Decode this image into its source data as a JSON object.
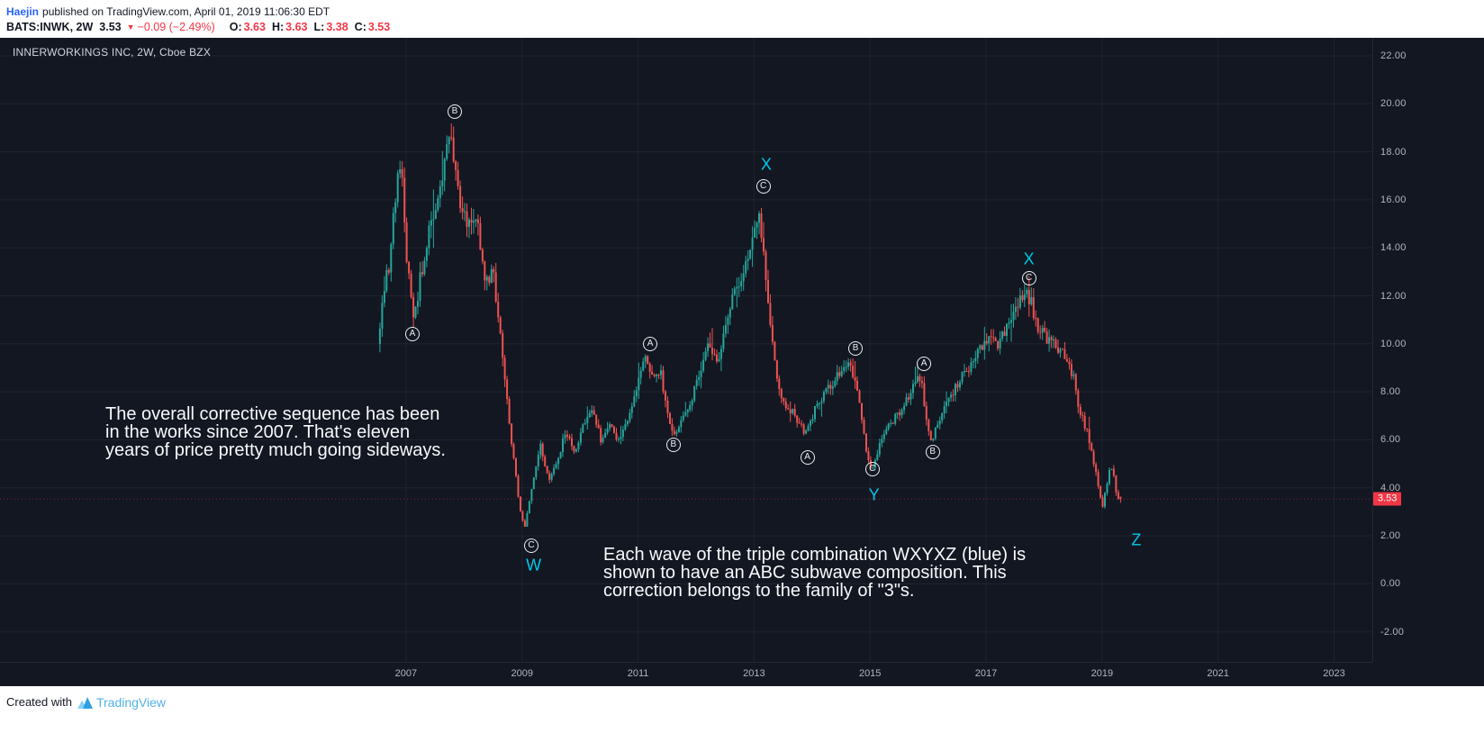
{
  "header": {
    "author": "Haejin",
    "published_text": "published on TradingView.com, April 01, 2019 11:06:30 EDT",
    "symbol": "BATS:INWK, 2W",
    "last_price": "3.53",
    "direction_icon": "▼",
    "change_text": "−0.09 (−2.49%)",
    "ohlc": [
      {
        "label": "O:",
        "value": "3.63"
      },
      {
        "label": "H:",
        "value": "3.63"
      },
      {
        "label": "L:",
        "value": "3.38"
      },
      {
        "label": "C:",
        "value": "3.53"
      }
    ]
  },
  "chart": {
    "title": "INNERWORKINGS INC, 2W, Cboe BZX",
    "price_axis_labels": [
      "22.00",
      "20.00",
      "18.00",
      "16.00",
      "14.00",
      "12.00",
      "10.00",
      "8.00",
      "6.00",
      "4.00",
      "2.00",
      "0.00",
      "-2.00"
    ],
    "time_axis_labels": [
      "2007",
      "2009",
      "2011",
      "2013",
      "2015",
      "2017",
      "2019",
      "2021",
      "2023"
    ],
    "last_price_tag": "3.53"
  },
  "annotations": {
    "note1": "The overall corrective sequence has been\nin the works since 2007. That's eleven\nyears of price pretty much going sideways.",
    "note2": "Each wave of the triple combination WXYXZ (blue) is\nshown to have an ABC subwave composition. This\ncorrection belongs to the family of \"3\"s.",
    "wave_points": [
      {
        "letter": "A",
        "year": 2007.11,
        "price": 10.4
      },
      {
        "letter": "B",
        "year": 2007.84,
        "price": 19.67
      },
      {
        "letter": "C",
        "year": 2009.16,
        "price": 1.58
      },
      {
        "letter": "A",
        "year": 2011.21,
        "price": 9.99
      },
      {
        "letter": "B",
        "year": 2011.61,
        "price": 5.79
      },
      {
        "letter": "C",
        "year": 2013.16,
        "price": 16.56
      },
      {
        "letter": "A",
        "year": 2013.92,
        "price": 5.26
      },
      {
        "letter": "B",
        "year": 2014.75,
        "price": 9.8
      },
      {
        "letter": "C",
        "year": 2015.04,
        "price": 4.78
      },
      {
        "letter": "A",
        "year": 2015.93,
        "price": 9.17
      },
      {
        "letter": "B",
        "year": 2016.08,
        "price": 5.49
      },
      {
        "letter": "C",
        "year": 2017.74,
        "price": 12.73
      }
    ],
    "wxyz_points": [
      {
        "letter": "W",
        "year": 2009.2,
        "price": 0.76
      },
      {
        "letter": "X",
        "year": 2013.21,
        "price": 17.46
      },
      {
        "letter": "Y",
        "year": 2015.07,
        "price": 3.69
      },
      {
        "letter": "X",
        "year": 2017.74,
        "price": 13.52
      },
      {
        "letter": "Z",
        "year": 2019.59,
        "price": 1.81
      }
    ]
  },
  "footer": {
    "created_with": "Created with",
    "brand": "TradingView"
  },
  "colors": {
    "chart_background": "#131722",
    "candle_up": "#26a69a",
    "candle_down": "#ef5350",
    "negative_red": "#f23645",
    "wave_letters": "#eceef1",
    "wxyz_cyan": "#00c9ea",
    "author_link_blue": "#2962ff",
    "brand_blue": "#51b2e9",
    "axis_text": "#b2b5be"
  },
  "chart_data": {
    "type": "candlestick",
    "symbol": "BATS:INWK",
    "interval": "2W",
    "xlim_years": [
      2000.0,
      2023.66
    ],
    "ylim_price": [
      -3.25,
      22.75
    ],
    "start_year": 2006.55,
    "end_year": 2019.3,
    "candle_interval_years": 0.03846,
    "last_candle": {
      "o": 3.63,
      "h": 3.63,
      "l": 3.38,
      "c": 3.53
    },
    "price_path": [
      [
        2006.55,
        10.0
      ],
      [
        2006.65,
        12.3
      ],
      [
        2006.75,
        13.2
      ],
      [
        2006.88,
        16.8
      ],
      [
        2006.96,
        17.6
      ],
      [
        2007.05,
        13.5
      ],
      [
        2007.18,
        11.0
      ],
      [
        2007.3,
        13.0
      ],
      [
        2007.45,
        14.8
      ],
      [
        2007.6,
        16.2
      ],
      [
        2007.75,
        18.0
      ],
      [
        2007.82,
        18.6
      ],
      [
        2007.95,
        16.2
      ],
      [
        2008.1,
        14.8
      ],
      [
        2008.25,
        15.3
      ],
      [
        2008.4,
        12.5
      ],
      [
        2008.55,
        12.9
      ],
      [
        2008.7,
        9.5
      ],
      [
        2008.85,
        6.0
      ],
      [
        2009.0,
        3.2
      ],
      [
        2009.08,
        2.2
      ],
      [
        2009.2,
        4.0
      ],
      [
        2009.35,
        5.8
      ],
      [
        2009.5,
        4.3
      ],
      [
        2009.65,
        5.2
      ],
      [
        2009.8,
        6.4
      ],
      [
        2009.95,
        5.3
      ],
      [
        2010.1,
        6.6
      ],
      [
        2010.25,
        7.3
      ],
      [
        2010.4,
        6.0
      ],
      [
        2010.55,
        6.6
      ],
      [
        2010.7,
        5.9
      ],
      [
        2010.85,
        6.8
      ],
      [
        2011.0,
        8.0
      ],
      [
        2011.15,
        9.6
      ],
      [
        2011.3,
        8.7
      ],
      [
        2011.42,
        8.9
      ],
      [
        2011.55,
        7.0
      ],
      [
        2011.68,
        6.1
      ],
      [
        2011.8,
        6.9
      ],
      [
        2011.95,
        7.6
      ],
      [
        2012.1,
        8.9
      ],
      [
        2012.25,
        9.9
      ],
      [
        2012.4,
        9.2
      ],
      [
        2012.55,
        10.8
      ],
      [
        2012.7,
        12.2
      ],
      [
        2012.85,
        13.0
      ],
      [
        2013.0,
        14.2
      ],
      [
        2013.12,
        15.2
      ],
      [
        2013.2,
        14.3
      ],
      [
        2013.3,
        11.0
      ],
      [
        2013.45,
        8.3
      ],
      [
        2013.6,
        7.4
      ],
      [
        2013.75,
        7.0
      ],
      [
        2013.92,
        6.3
      ],
      [
        2014.1,
        7.3
      ],
      [
        2014.3,
        8.2
      ],
      [
        2014.55,
        8.8
      ],
      [
        2014.7,
        9.3
      ],
      [
        2014.85,
        7.5
      ],
      [
        2015.0,
        5.2
      ],
      [
        2015.07,
        4.7
      ],
      [
        2015.2,
        5.8
      ],
      [
        2015.35,
        6.6
      ],
      [
        2015.5,
        7.0
      ],
      [
        2015.65,
        7.6
      ],
      [
        2015.8,
        8.3
      ],
      [
        2015.92,
        8.7
      ],
      [
        2016.0,
        7.0
      ],
      [
        2016.08,
        5.9
      ],
      [
        2016.2,
        6.6
      ],
      [
        2016.35,
        7.6
      ],
      [
        2016.5,
        8.1
      ],
      [
        2016.65,
        8.7
      ],
      [
        2016.8,
        9.2
      ],
      [
        2016.95,
        9.9
      ],
      [
        2017.1,
        10.2
      ],
      [
        2017.25,
        10.0
      ],
      [
        2017.4,
        10.8
      ],
      [
        2017.55,
        11.5
      ],
      [
        2017.7,
        12.1
      ],
      [
        2017.8,
        11.8
      ],
      [
        2017.95,
        10.6
      ],
      [
        2018.1,
        10.2
      ],
      [
        2018.25,
        9.9
      ],
      [
        2018.4,
        9.4
      ],
      [
        2018.55,
        8.6
      ],
      [
        2018.65,
        7.2
      ],
      [
        2018.8,
        6.2
      ],
      [
        2018.95,
        4.4
      ],
      [
        2019.05,
        3.2
      ],
      [
        2019.15,
        4.6
      ],
      [
        2019.22,
        5.0
      ],
      [
        2019.3,
        3.53
      ]
    ]
  }
}
